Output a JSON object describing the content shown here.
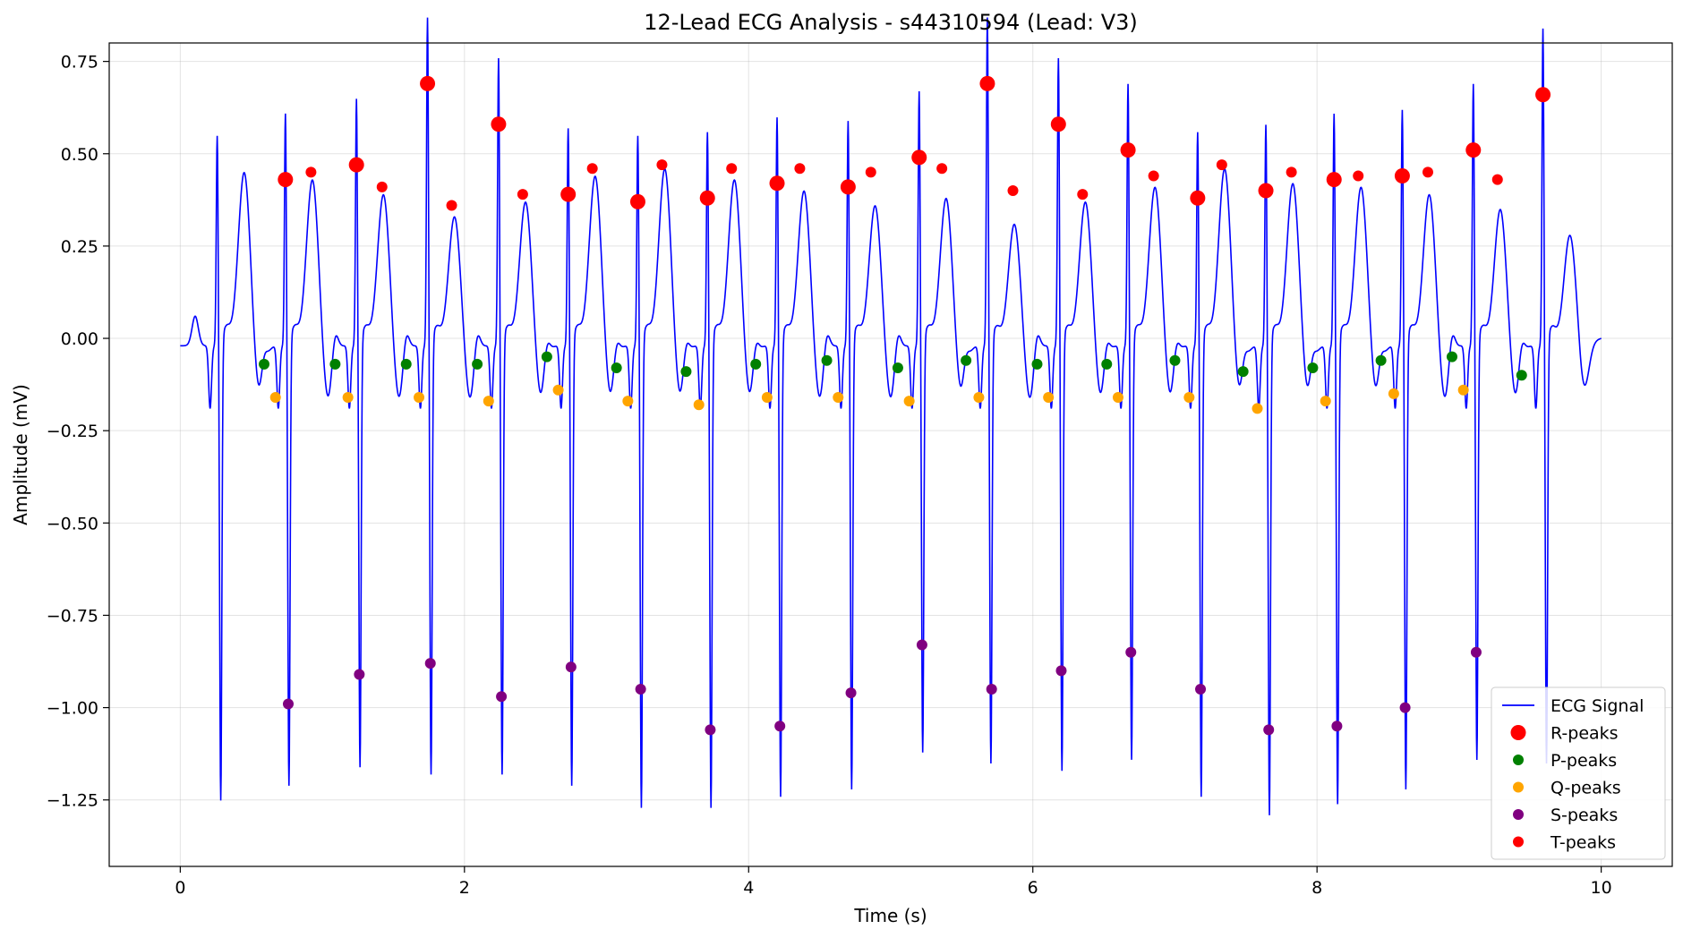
{
  "chart_data": {
    "type": "line",
    "title": "12-Lead ECG Analysis - s44310594 (Lead: V3)",
    "xlabel": "Time (s)",
    "ylabel": "Amplitude (mV)",
    "xlim": [
      -0.5,
      10.5
    ],
    "ylim": [
      -1.43,
      0.8
    ],
    "xticks": [
      0,
      2,
      4,
      6,
      8,
      10
    ],
    "xtick_labels": [
      "0",
      "2",
      "4",
      "6",
      "8",
      "10"
    ],
    "yticks": [
      -1.25,
      -1.0,
      -0.75,
      -0.5,
      -0.25,
      0.0,
      0.25,
      0.5,
      0.75
    ],
    "ytick_labels": [
      "−1.25",
      "−1.00",
      "−0.75",
      "−0.50",
      "−0.25",
      "0.00",
      "0.25",
      "0.50",
      "0.75"
    ],
    "grid": true,
    "legend_position": "lower right",
    "signal_color": "#0000ff",
    "marker_colors": {
      "R-peaks": "#ff0000",
      "P-peaks": "#008000",
      "Q-peaks": "#ffa500",
      "S-peaks": "#800080",
      "T-peaks": "#ff0000"
    },
    "legend": [
      "ECG Signal",
      "R-peaks",
      "P-peaks",
      "Q-peaks",
      "S-peaks",
      "T-peaks"
    ],
    "series": [
      {
        "name": "R-peaks",
        "marker": "large-dot",
        "x": [
          0.74,
          1.24,
          1.74,
          2.24,
          2.73,
          3.22,
          3.71,
          4.2,
          4.7,
          5.2,
          5.68,
          6.18,
          6.67,
          7.16,
          7.64,
          8.12,
          8.6,
          9.1,
          9.59
        ],
        "y": [
          0.43,
          0.47,
          0.69,
          0.58,
          0.39,
          0.37,
          0.38,
          0.42,
          0.41,
          0.49,
          0.69,
          0.58,
          0.51,
          0.38,
          0.4,
          0.43,
          0.44,
          0.51,
          0.66
        ]
      },
      {
        "name": "P-peaks",
        "marker": "dot",
        "x": [
          0.59,
          1.09,
          1.59,
          2.09,
          2.58,
          3.07,
          3.56,
          4.05,
          4.55,
          5.05,
          5.53,
          6.03,
          6.52,
          7.0,
          7.48,
          7.97,
          8.45,
          8.95,
          9.44
        ],
        "y": [
          -0.07,
          -0.07,
          -0.07,
          -0.07,
          -0.05,
          -0.08,
          -0.09,
          -0.07,
          -0.06,
          -0.08,
          -0.06,
          -0.07,
          -0.07,
          -0.06,
          -0.09,
          -0.08,
          -0.06,
          -0.05,
          -0.1
        ]
      },
      {
        "name": "Q-peaks",
        "marker": "dot",
        "x": [
          0.67,
          1.18,
          1.68,
          2.17,
          2.66,
          3.15,
          3.65,
          4.13,
          4.63,
          5.13,
          5.62,
          6.11,
          6.6,
          7.1,
          7.58,
          8.06,
          8.54,
          9.03
        ],
        "y": [
          -0.16,
          -0.16,
          -0.16,
          -0.17,
          -0.14,
          -0.17,
          -0.18,
          -0.16,
          -0.16,
          -0.17,
          -0.16,
          -0.16,
          -0.16,
          -0.16,
          -0.19,
          -0.17,
          -0.15,
          -0.14
        ]
      },
      {
        "name": "S-peaks",
        "marker": "dot",
        "x": [
          0.76,
          1.26,
          1.76,
          2.26,
          2.75,
          3.24,
          3.73,
          4.22,
          4.72,
          5.22,
          5.71,
          6.2,
          6.69,
          7.18,
          7.66,
          8.14,
          8.62,
          9.12
        ],
        "y": [
          -0.99,
          -0.91,
          -0.88,
          -0.97,
          -0.89,
          -0.95,
          -1.06,
          -1.05,
          -0.96,
          -0.83,
          -0.95,
          -0.9,
          -0.85,
          -0.95,
          -1.06,
          -1.05,
          -1.0,
          -0.85
        ]
      },
      {
        "name": "T-peaks",
        "marker": "dot",
        "x": [
          0.92,
          1.42,
          1.91,
          2.41,
          2.9,
          3.39,
          3.88,
          4.36,
          4.86,
          5.36,
          5.86,
          6.35,
          6.85,
          7.33,
          7.82,
          8.29,
          8.78,
          9.27
        ],
        "y": [
          0.45,
          0.41,
          0.36,
          0.39,
          0.46,
          0.47,
          0.46,
          0.46,
          0.45,
          0.46,
          0.4,
          0.39,
          0.44,
          0.47,
          0.45,
          0.44,
          0.45,
          0.43
        ]
      }
    ],
    "ecg_signal": {
      "name": "ECG Signal",
      "duration_s": 10,
      "beats": [
        {
          "r": 0.26,
          "r_amp": 0.37,
          "s_amp": -1.3,
          "t_amp": 0.53
        },
        {
          "r": 0.74,
          "r_amp": 0.43,
          "s_amp": -1.26,
          "t_amp": 0.51
        },
        {
          "r": 1.24,
          "r_amp": 0.47,
          "s_amp": -1.21,
          "t_amp": 0.47
        },
        {
          "r": 1.74,
          "r_amp": 0.69,
          "s_amp": -1.23,
          "t_amp": 0.41
        },
        {
          "r": 2.24,
          "r_amp": 0.58,
          "s_amp": -1.23,
          "t_amp": 0.45
        },
        {
          "r": 2.73,
          "r_amp": 0.39,
          "s_amp": -1.26,
          "t_amp": 0.52
        },
        {
          "r": 3.22,
          "r_amp": 0.37,
          "s_amp": -1.32,
          "t_amp": 0.54
        },
        {
          "r": 3.71,
          "r_amp": 0.38,
          "s_amp": -1.32,
          "t_amp": 0.51
        },
        {
          "r": 4.2,
          "r_amp": 0.42,
          "s_amp": -1.29,
          "t_amp": 0.48
        },
        {
          "r": 4.7,
          "r_amp": 0.41,
          "s_amp": -1.27,
          "t_amp": 0.44
        },
        {
          "r": 5.2,
          "r_amp": 0.49,
          "s_amp": -1.17,
          "t_amp": 0.46
        },
        {
          "r": 5.68,
          "r_amp": 0.69,
          "s_amp": -1.2,
          "t_amp": 0.39
        },
        {
          "r": 6.18,
          "r_amp": 0.58,
          "s_amp": -1.22,
          "t_amp": 0.45
        },
        {
          "r": 6.67,
          "r_amp": 0.51,
          "s_amp": -1.19,
          "t_amp": 0.49
        },
        {
          "r": 7.16,
          "r_amp": 0.38,
          "s_amp": -1.29,
          "t_amp": 0.54
        },
        {
          "r": 7.64,
          "r_amp": 0.4,
          "s_amp": -1.34,
          "t_amp": 0.5
        },
        {
          "r": 8.12,
          "r_amp": 0.43,
          "s_amp": -1.31,
          "t_amp": 0.49
        },
        {
          "r": 8.6,
          "r_amp": 0.44,
          "s_amp": -1.27,
          "t_amp": 0.47
        },
        {
          "r": 9.1,
          "r_amp": 0.51,
          "s_amp": -1.19,
          "t_amp": 0.43
        },
        {
          "r": 9.59,
          "r_amp": 0.66,
          "s_amp": -1.2,
          "t_amp": 0.36
        }
      ]
    }
  }
}
